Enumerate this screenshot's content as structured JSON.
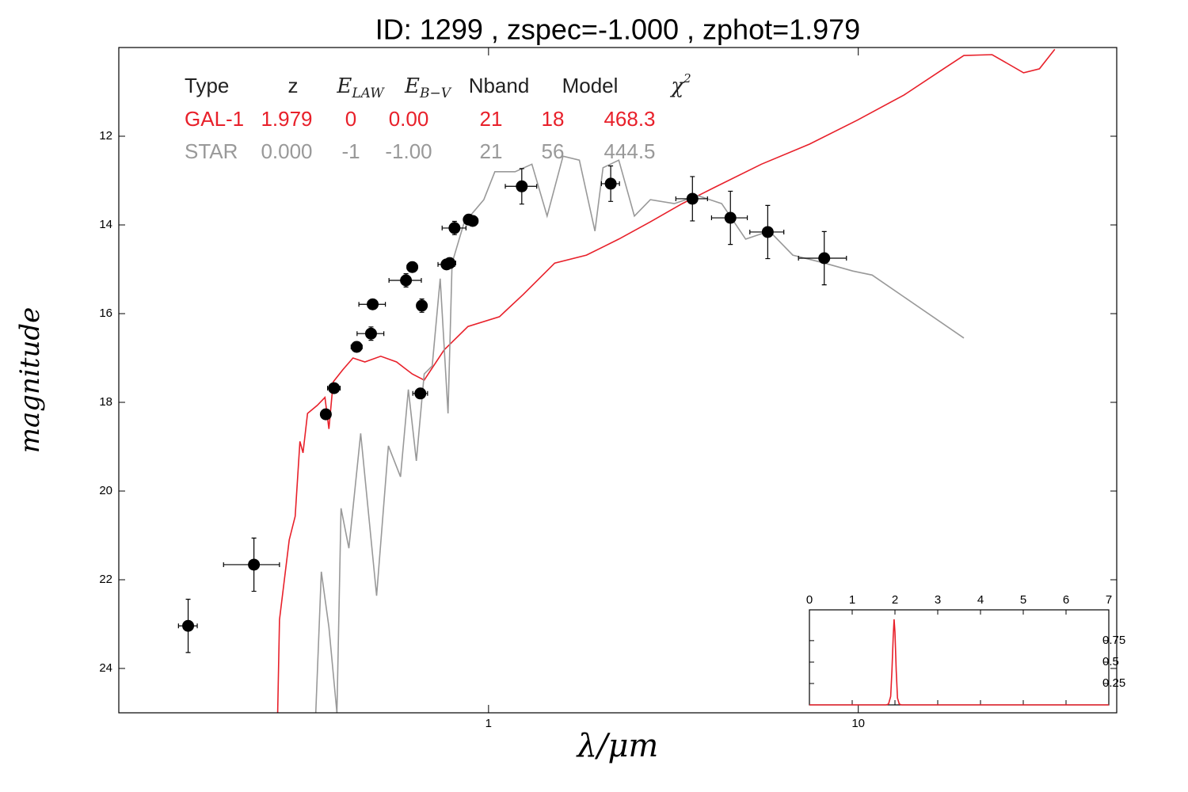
{
  "chart_data": {
    "type": "scatter",
    "title": "ID:  1299  , zspec=-1.000 , zphot=1.979",
    "xlabel": "λ/μm",
    "ylabel": "magnitude",
    "xscale": "log",
    "xlim": [
      0.1,
      50
    ],
    "ylim": [
      25,
      10
    ],
    "xticks": [
      1,
      10
    ],
    "yticks": [
      12,
      14,
      16,
      18,
      20,
      22,
      24
    ],
    "points": {
      "color": "#000000",
      "x": [
        0.154,
        0.232,
        0.363,
        0.382,
        0.44,
        0.481,
        0.486,
        0.598,
        0.622,
        0.654,
        0.66,
        0.77,
        0.785,
        0.809,
        0.884,
        0.906,
        1.23,
        2.14,
        3.56,
        4.51,
        5.69,
        8.09
      ],
      "values": [
        23.04,
        21.66,
        18.27,
        17.68,
        16.75,
        16.45,
        15.79,
        15.25,
        14.95,
        17.8,
        15.82,
        14.89,
        14.86,
        14.07,
        13.88,
        13.91,
        13.13,
        13.07,
        13.41,
        13.84,
        14.16,
        14.75
      ],
      "xerr": [
        0.009,
        0.04,
        0.008,
        0.015,
        0.015,
        0.04,
        0.04,
        0.06,
        0.02,
        0.03,
        0.02,
        0.04,
        0.03,
        0.06,
        0.02,
        0.03,
        0.12,
        0.12,
        0.35,
        0.5,
        0.6,
        1.2
      ],
      "yerr": [
        0.6,
        0.6,
        0.1,
        0.1,
        0.1,
        0.15,
        0.05,
        0.15,
        0.05,
        0.05,
        0.15,
        0.1,
        0.1,
        0.15,
        0.1,
        0.1,
        0.4,
        0.4,
        0.5,
        0.6,
        0.6,
        0.6
      ]
    },
    "series": [
      {
        "color": "#e8202a",
        "x": [
          0.269,
          0.272,
          0.289,
          0.3,
          0.309,
          0.315,
          0.324,
          0.344,
          0.361,
          0.37,
          0.38,
          0.403,
          0.43,
          0.463,
          0.511,
          0.564,
          0.622,
          0.67,
          0.758,
          0.88,
          1.07,
          1.24,
          1.51,
          1.84,
          2.25,
          2.74,
          3.34,
          4.07,
          5.47,
          7.37,
          9.93,
          13.3,
          17.0,
          19.3,
          23.0,
          28.0,
          30.9,
          34.0
        ],
        "values": [
          25.0,
          22.9,
          21.1,
          20.57,
          18.88,
          19.14,
          18.25,
          18.07,
          17.89,
          18.6,
          17.54,
          17.27,
          17.0,
          17.09,
          16.96,
          17.09,
          17.36,
          17.5,
          16.82,
          16.29,
          16.07,
          15.57,
          14.86,
          14.68,
          14.32,
          13.93,
          13.52,
          13.16,
          12.63,
          12.18,
          11.64,
          11.07,
          10.48,
          10.18,
          10.16,
          10.57,
          10.48,
          10.04
        ]
      },
      {
        "color": "#999999",
        "x": [
          0.341,
          0.353,
          0.37,
          0.389,
          0.399,
          0.419,
          0.451,
          0.498,
          0.536,
          0.578,
          0.607,
          0.638,
          0.67,
          0.704,
          0.74,
          0.777,
          0.797,
          0.858,
          0.971,
          1.04,
          1.18,
          1.31,
          1.44,
          1.59,
          1.76,
          1.94,
          2.04,
          2.25,
          2.48,
          2.74,
          3.18,
          3.68,
          4.27,
          4.96,
          5.75,
          6.65,
          8.1,
          9.66,
          10.9,
          19.3
        ],
        "values": [
          25.0,
          21.82,
          23.07,
          25.0,
          20.39,
          21.29,
          18.7,
          22.36,
          18.98,
          19.68,
          17.71,
          19.32,
          17.36,
          17.18,
          15.21,
          18.25,
          14.86,
          13.96,
          13.43,
          12.8,
          12.8,
          12.63,
          13.8,
          12.45,
          12.54,
          14.14,
          12.71,
          12.54,
          13.8,
          13.43,
          13.52,
          13.34,
          13.52,
          14.32,
          14.14,
          14.68,
          14.86,
          15.04,
          15.13,
          16.55
        ]
      }
    ],
    "table": {
      "header": [
        {
          "base": "Type"
        },
        {
          "base": "z"
        },
        {
          "base": "E",
          "sub": "LAW"
        },
        {
          "base": "E",
          "sub": "B−V"
        },
        {
          "base": "Nband"
        },
        {
          "base": "Model"
        },
        {
          "base": "χ",
          "sup": "2"
        }
      ],
      "rows": [
        [
          "GAL-1",
          "1.979",
          "0",
          "0.00",
          "21",
          "18",
          "468.3"
        ],
        [
          "STAR",
          "0.000",
          "-1",
          "-1.00",
          "21",
          "56",
          "444.5"
        ]
      ]
    },
    "inset": {
      "type": "line",
      "color": "#e8202a",
      "xlim": [
        0,
        7
      ],
      "ylim": [
        0,
        1.11
      ],
      "xticks": [
        0,
        1,
        2,
        3,
        4,
        5,
        6,
        7
      ],
      "yticks": [
        0.25,
        0.5,
        0.75
      ],
      "x": [
        0,
        1.8,
        1.85,
        1.9,
        1.93,
        1.96,
        1.98,
        2.0,
        2.03,
        2.06,
        2.1,
        2.15,
        7
      ],
      "values": [
        0,
        0,
        0.01,
        0.1,
        0.4,
        0.8,
        1.0,
        0.85,
        0.4,
        0.08,
        0.01,
        0,
        0
      ]
    }
  }
}
